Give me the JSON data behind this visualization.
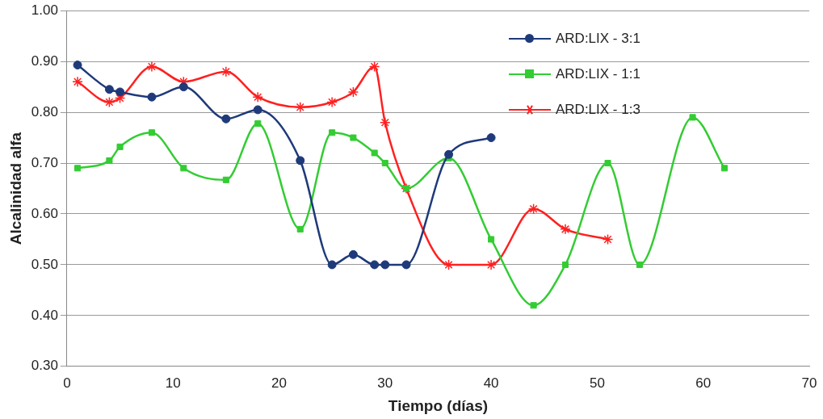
{
  "chart_data": {
    "type": "line",
    "xlabel": "Tiempo (días)",
    "ylabel": "Alcalinidad alfa",
    "xlim": [
      0,
      70
    ],
    "xticks": [
      0,
      10,
      20,
      30,
      40,
      50,
      60,
      70
    ],
    "ylim": [
      0.3,
      1.0
    ],
    "yticks": [
      {
        "value": 0.3,
        "label": "0.30"
      },
      {
        "value": 0.4,
        "label": "0.40"
      },
      {
        "value": 0.5,
        "label": "0.50"
      },
      {
        "value": 0.6,
        "label": "0.60"
      },
      {
        "value": 0.7,
        "label": "0.70"
      },
      {
        "value": 0.8,
        "label": "0.80"
      },
      {
        "value": 0.9,
        "label": "0.90"
      },
      {
        "value": 1.0,
        "label": "1.00"
      }
    ],
    "grid": "y",
    "legend": "top right",
    "line_style": "solid",
    "series": [
      {
        "name": "ARD:LIX - 3:1",
        "color": "#1f3a7a",
        "marker": "circle",
        "x": [
          1,
          4,
          5,
          8,
          11,
          15,
          18,
          22,
          25,
          27,
          29,
          30,
          32,
          36,
          40
        ],
        "values": [
          0.893,
          0.845,
          0.84,
          0.83,
          0.85,
          0.787,
          0.805,
          0.705,
          0.5,
          0.52,
          0.5,
          0.5,
          0.5,
          0.717,
          0.75
        ]
      },
      {
        "name": "ARD:LIX - 1:1",
        "color": "#33cc33",
        "marker": "square",
        "x": [
          1,
          4,
          5,
          8,
          11,
          15,
          18,
          22,
          25,
          27,
          29,
          30,
          32,
          36,
          40,
          44,
          47,
          51,
          54,
          59,
          62
        ],
        "values": [
          0.69,
          0.705,
          0.732,
          0.76,
          0.69,
          0.667,
          0.778,
          0.57,
          0.76,
          0.75,
          0.72,
          0.7,
          0.65,
          0.71,
          0.55,
          0.42,
          0.5,
          0.7,
          0.5,
          0.79,
          0.69
        ]
      },
      {
        "name": "ARD:LIX - 1:3",
        "color": "#ff2020",
        "marker": "cross",
        "x": [
          1,
          4,
          5,
          8,
          11,
          15,
          18,
          22,
          25,
          27,
          29,
          30,
          32,
          36,
          40,
          44,
          47,
          51
        ],
        "values": [
          0.86,
          0.82,
          0.828,
          0.89,
          0.86,
          0.88,
          0.83,
          0.81,
          0.82,
          0.84,
          0.89,
          0.78,
          0.65,
          0.5,
          0.5,
          0.61,
          0.57,
          0.55
        ]
      }
    ]
  }
}
